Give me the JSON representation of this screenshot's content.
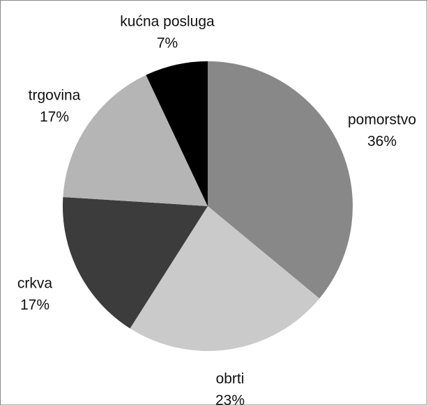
{
  "chart_data": {
    "type": "pie",
    "categories": [
      "pomorstvo",
      "obrti",
      "crkva",
      "trgovina",
      "kućna posluga"
    ],
    "values": [
      36,
      23,
      17,
      17,
      7
    ],
    "value_labels": [
      "36%",
      "23%",
      "17%",
      "17%",
      "7%"
    ],
    "colors": [
      "#878887",
      "#cacaca",
      "#3b3c3b",
      "#b5b5b5",
      "#000000"
    ]
  }
}
